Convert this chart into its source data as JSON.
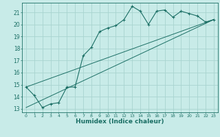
{
  "title": "",
  "xlabel": "Humidex (Indice chaleur)",
  "ylabel": "",
  "bg_color": "#c8ebe8",
  "grid_color": "#a8d4d0",
  "line_color": "#1a6e64",
  "xlim": [
    -0.5,
    23.5
  ],
  "ylim": [
    12.7,
    21.8
  ],
  "yticks": [
    13,
    14,
    15,
    16,
    17,
    18,
    19,
    20,
    21
  ],
  "xticks": [
    0,
    1,
    2,
    3,
    4,
    5,
    6,
    7,
    8,
    9,
    10,
    11,
    12,
    13,
    14,
    15,
    16,
    17,
    18,
    19,
    20,
    21,
    22,
    23
  ],
  "series1_x": [
    0,
    1,
    2,
    3,
    4,
    5,
    6,
    7,
    8,
    9,
    10,
    11,
    12,
    13,
    14,
    15,
    16,
    17,
    18,
    19,
    20,
    21,
    22,
    23
  ],
  "series1_y": [
    14.8,
    14.1,
    13.1,
    13.4,
    13.5,
    14.8,
    14.8,
    17.4,
    18.1,
    19.4,
    19.7,
    19.9,
    20.4,
    21.5,
    21.1,
    20.0,
    21.1,
    21.2,
    20.6,
    21.1,
    20.9,
    20.7,
    20.2,
    20.4
  ],
  "series2_x": [
    0,
    23
  ],
  "series2_y": [
    13.1,
    20.4
  ],
  "series3_x": [
    0,
    23
  ],
  "series3_y": [
    14.8,
    20.4
  ]
}
